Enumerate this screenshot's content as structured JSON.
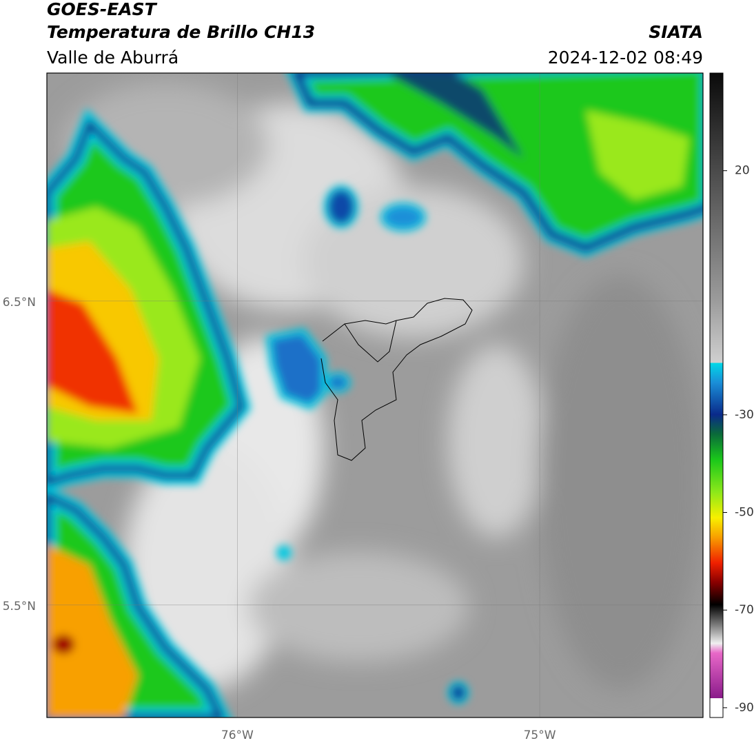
{
  "header": {
    "title": "GOES-EAST",
    "subtitle": "Temperatura de Brillo CH13",
    "region": "Valle de Aburrá",
    "source": "SIATA",
    "datetime": "2024-12-02 08:49"
  },
  "map": {
    "xlim": [
      -76.63,
      -74.46
    ],
    "ylim": [
      5.13,
      7.25
    ],
    "xticks": [
      {
        "value": -76,
        "label": "76°W"
      },
      {
        "value": -75,
        "label": "75°W"
      }
    ],
    "yticks": [
      {
        "value": 5.5,
        "label": "5.5°N"
      },
      {
        "value": 6.5,
        "label": "6.5°N"
      }
    ],
    "grid": true
  },
  "colorbar": {
    "lim": [
      -92,
      40
    ],
    "ticks": [
      20,
      -30,
      -50,
      -70,
      -90
    ]
  }
}
